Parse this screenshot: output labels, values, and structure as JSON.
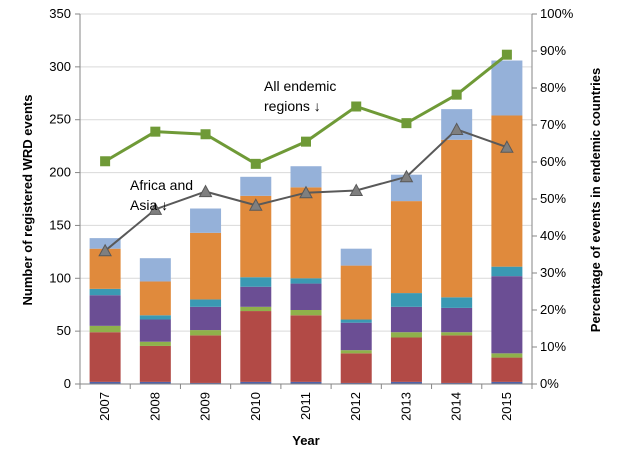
{
  "chart_data": {
    "type": "bar",
    "stacked": true,
    "categories": [
      "2007",
      "2008",
      "2009",
      "2010",
      "2011",
      "2012",
      "2013",
      "2014",
      "2015"
    ],
    "xlabel": "Year",
    "ylabel": "Number of registered WRD events",
    "ylabel_right": "Percentage of events in endemic countries",
    "ylim": [
      0,
      350
    ],
    "y_ticks": [
      "0",
      "50",
      "100",
      "150",
      "200",
      "250",
      "300",
      "350"
    ],
    "ylim_right": [
      0,
      100
    ],
    "y_right_ticks": [
      "0%",
      "10%",
      "20%",
      "30%",
      "40%",
      "50%",
      "60%",
      "70%",
      "80%",
      "90%",
      "100%"
    ],
    "grid": true,
    "legend": "none",
    "series": [
      {
        "values": [
          2,
          2,
          1,
          2,
          2,
          1,
          2,
          1,
          2
        ],
        "color": "#4f62a8",
        "kind": "bar"
      },
      {
        "values": [
          47,
          34,
          45,
          67,
          63,
          28,
          42,
          45,
          23
        ],
        "color": "#b24a46",
        "kind": "bar"
      },
      {
        "values": [
          6,
          4,
          5,
          4,
          5,
          3,
          5,
          3,
          4
        ],
        "color": "#8fb14b",
        "kind": "bar"
      },
      {
        "values": [
          29,
          21,
          22,
          19,
          25,
          26,
          24,
          23,
          73
        ],
        "color": "#6b4e94",
        "kind": "bar"
      },
      {
        "values": [
          6,
          4,
          7,
          9,
          5,
          3,
          13,
          10,
          9
        ],
        "color": "#3a99b3",
        "kind": "bar"
      },
      {
        "values": [
          38,
          32,
          63,
          77,
          86,
          51,
          87,
          149,
          143
        ],
        "color": "#e08a3c",
        "kind": "bar"
      },
      {
        "values": [
          10,
          22,
          23,
          18,
          20,
          16,
          25,
          29,
          52
        ],
        "color": "#95b1d9",
        "kind": "bar"
      },
      {
        "values": [
          60.2,
          68.2,
          67.5,
          59.5,
          65.5,
          75.0,
          70.5,
          78.2,
          89.0
        ],
        "color": "#6f9a37",
        "kind": "line",
        "marker": "square",
        "axis": "right"
      },
      {
        "values": [
          36.0,
          47.2,
          52.0,
          48.3,
          51.7,
          52.3,
          56.0,
          68.8,
          64.0
        ],
        "color": "#595959",
        "kind": "line",
        "marker": "triangle",
        "axis": "right"
      }
    ],
    "annotations": [
      {
        "line1": "All endemic",
        "line2": "regions ↓"
      },
      {
        "line1": "Africa and",
        "line2": "Asia ↓"
      }
    ]
  }
}
